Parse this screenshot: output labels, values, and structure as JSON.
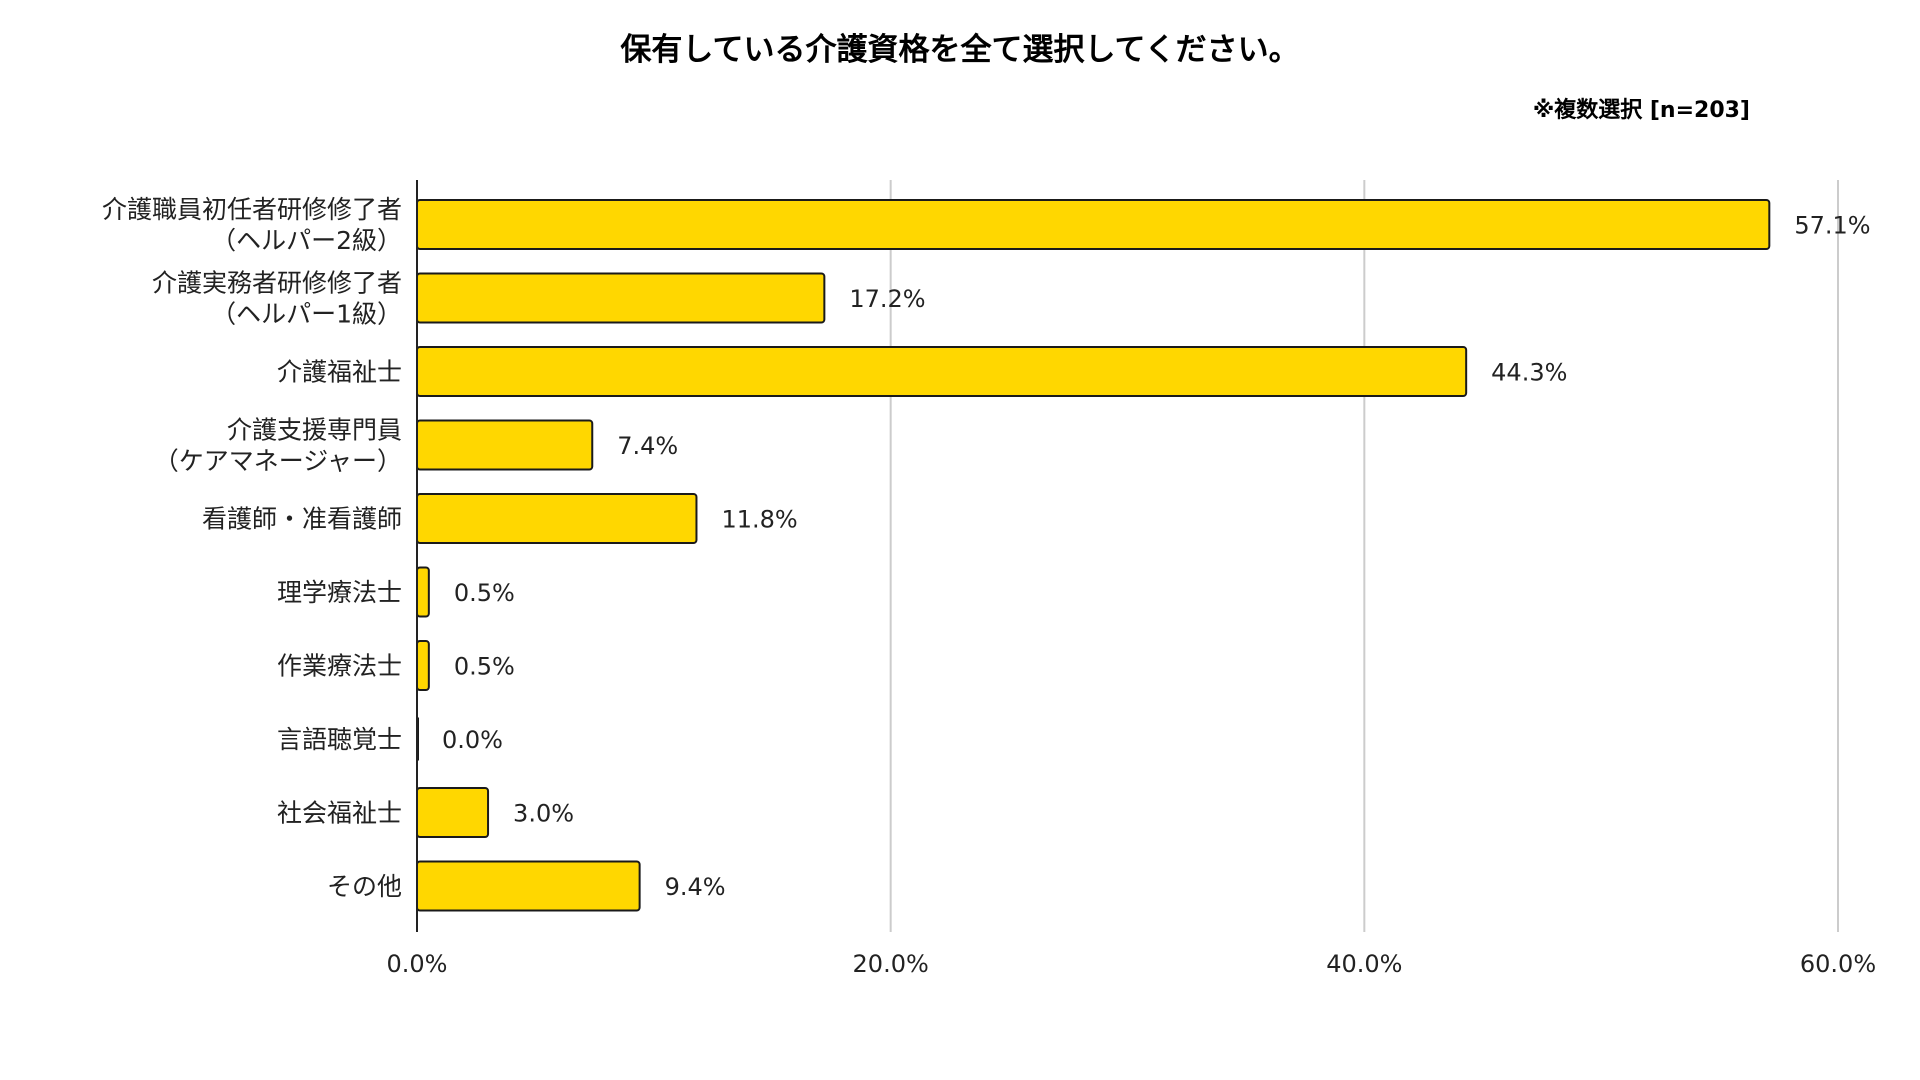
{
  "chart_data": {
    "type": "bar",
    "orientation": "horizontal",
    "title": "保有している介護資格を全て選択してください。",
    "note": "※複数選択 [n=203]",
    "categories": [
      [
        "介護職員初任者研修修了者",
        "（ヘルパー2級）"
      ],
      [
        "介護実務者研修修了者",
        "（ヘルパー1級）"
      ],
      [
        "介護福祉士"
      ],
      [
        "介護支援専門員",
        "（ケアマネージャー）"
      ],
      [
        "看護師・准看護師"
      ],
      [
        "理学療法士"
      ],
      [
        "作業療法士"
      ],
      [
        "言語聴覚士"
      ],
      [
        "社会福祉士"
      ],
      [
        "その他"
      ]
    ],
    "values": [
      57.1,
      17.2,
      44.3,
      7.4,
      11.8,
      0.5,
      0.5,
      0.0,
      3.0,
      9.4
    ],
    "value_labels": [
      "57.1%",
      "17.2%",
      "44.3%",
      "7.4%",
      "11.8%",
      "0.5%",
      "0.5%",
      "0.0%",
      "3.0%",
      "9.4%"
    ],
    "xlim": [
      0,
      60
    ],
    "xticks": [
      0,
      20,
      40,
      60
    ],
    "xtick_labels": [
      "0.0%",
      "20.0%",
      "40.0%",
      "60.0%"
    ],
    "grid": "vertical",
    "legend": "none",
    "colors": {
      "bar": "#FFD700",
      "bar_stroke": "#1a1a1a",
      "grid": "#cccccc",
      "axis": "#222222"
    }
  }
}
